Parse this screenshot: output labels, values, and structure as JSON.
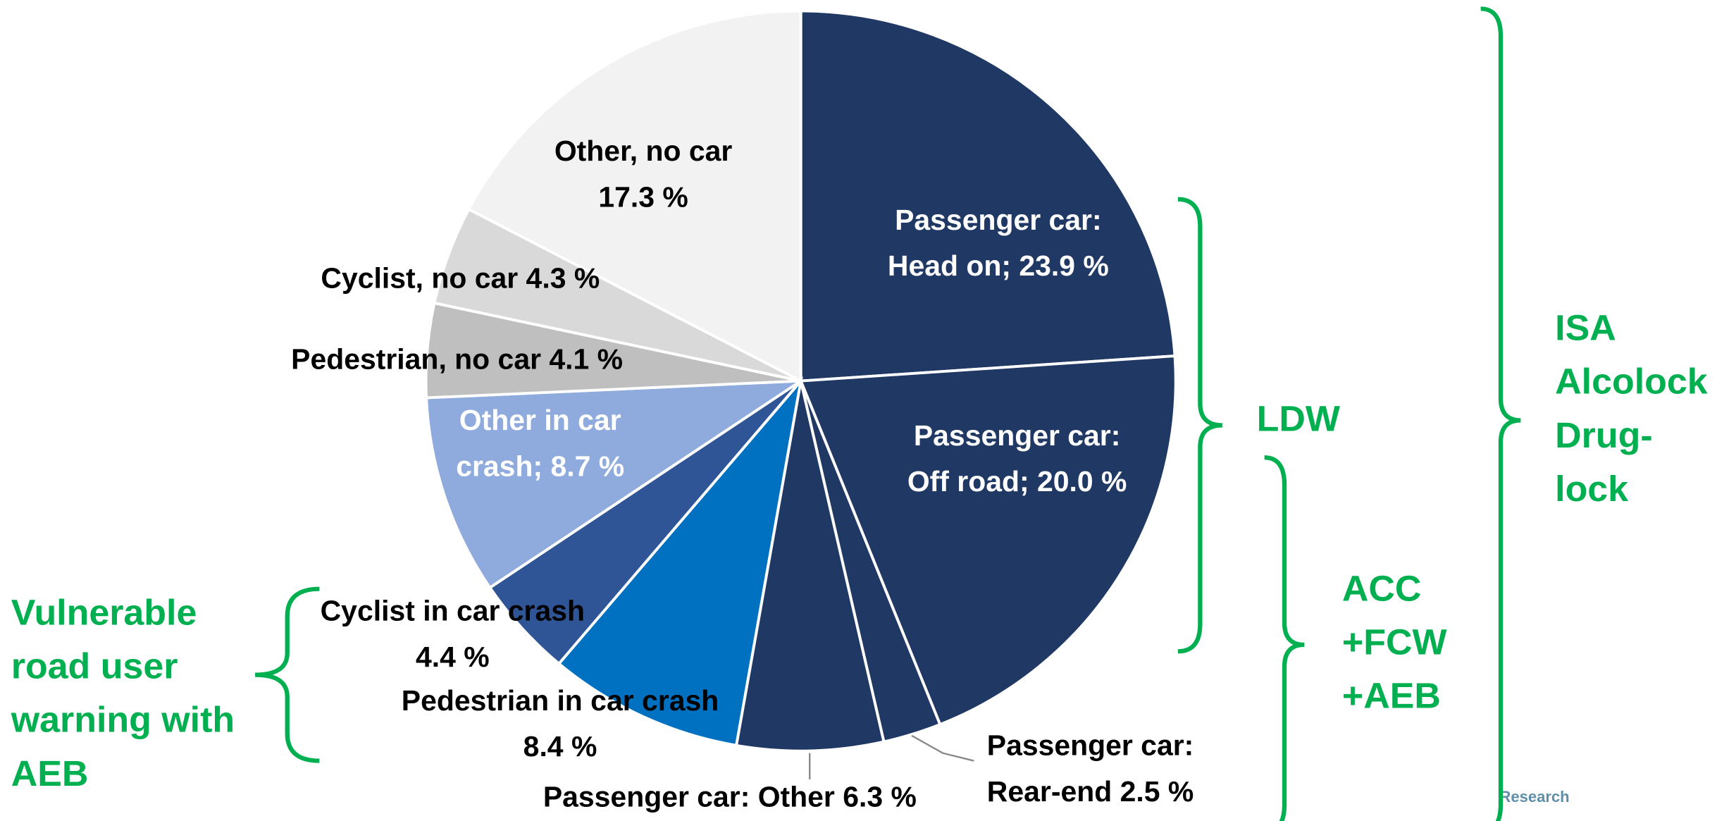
{
  "chart_data": {
    "type": "pie",
    "values": [
      23.9,
      20.0,
      2.5,
      6.3,
      8.4,
      4.4,
      8.7,
      4.1,
      4.3,
      17.3
    ],
    "value_labels": [
      [
        "Passenger car:",
        "Head on; 23.9 %"
      ],
      [
        "Passenger car:",
        "Off road; 20.0 %"
      ],
      [
        "Passenger car:",
        "Rear-end 2.5 %"
      ],
      [
        "Passenger car: Other 6.3 %"
      ],
      [
        "Pedestrian in car crash",
        "8.4 %"
      ],
      [
        "Cyclist in car crash",
        "4.4 %"
      ],
      [
        "Other in car",
        "crash; 8.7 %"
      ],
      [
        "Pedestrian, no car 4.1 %"
      ],
      [
        "Cyclist, no car 4.3 %"
      ],
      [
        "Other, no car",
        "17.3 %"
      ]
    ],
    "colors": [
      "#203864",
      "#203864",
      "#203864",
      "#203864",
      "#0070c0",
      "#2f5597",
      "#8faadc",
      "#bfbfbf",
      "#d9d9d9",
      "#f2f2f2"
    ],
    "annotations": [
      [
        "LDW"
      ],
      [
        "ACC",
        "+FCW",
        "+AEB"
      ],
      [
        "ISA",
        "Alcolock",
        "Drug-",
        "lock"
      ],
      [
        "Vulnerable",
        "road user",
        "warning with",
        "AEB"
      ]
    ],
    "source": "Research"
  }
}
